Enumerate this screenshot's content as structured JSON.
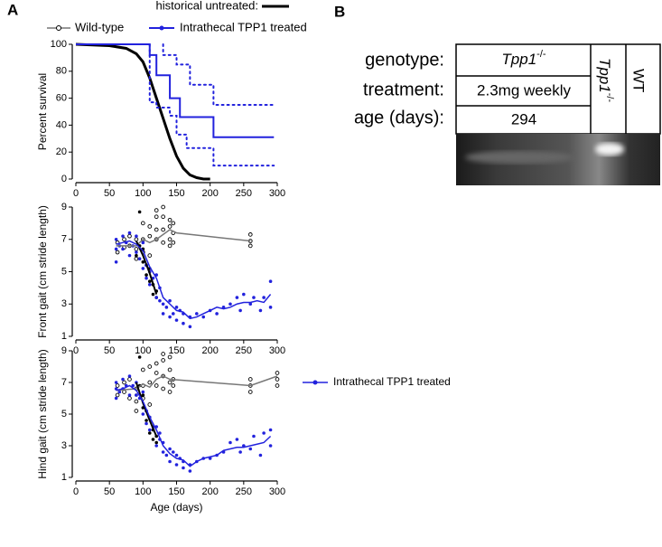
{
  "panel_labels": [
    "A",
    "B"
  ],
  "chart_data": [
    {
      "type": "line",
      "y_label": "Percent survival",
      "xlim": [
        0,
        300
      ],
      "xticks": [
        0,
        50,
        100,
        150,
        200,
        250,
        300
      ],
      "ylim": [
        0,
        100
      ],
      "yticks": [
        0,
        20,
        40,
        60,
        80,
        100
      ],
      "series": [
        {
          "name": "historical untreated:",
          "color": "#000000",
          "width": 3,
          "mode": "line",
          "x": [
            0,
            50,
            75,
            90,
            100,
            110,
            120,
            130,
            140,
            150,
            160,
            170,
            180,
            190,
            200
          ],
          "values": [
            100,
            99,
            97,
            93,
            87,
            75,
            60,
            45,
            30,
            17,
            8,
            3,
            1,
            0,
            0
          ]
        },
        {
          "name": "Intrathecal TPP1 treated",
          "color": "#2222dd",
          "width": 2,
          "mode": "line",
          "x": [
            0,
            110,
            110,
            120,
            120,
            140,
            140,
            155,
            155,
            165,
            165,
            205,
            205,
            295
          ],
          "values": [
            100,
            100,
            92,
            92,
            77,
            77,
            60,
            60,
            46,
            46,
            46,
            46,
            31,
            31
          ]
        },
        {
          "color": "#2222dd",
          "width": 2,
          "mode": "line",
          "dashed": true,
          "x": [
            130,
            130,
            150,
            150,
            170,
            170,
            205,
            205,
            295
          ],
          "values": [
            100,
            92,
            92,
            85,
            85,
            70,
            70,
            55,
            55
          ]
        },
        {
          "color": "#2222dd",
          "width": 2,
          "mode": "line",
          "dashed": true,
          "x": [
            110,
            110,
            120,
            120,
            140,
            140,
            150,
            150,
            165,
            165,
            205,
            205,
            295
          ],
          "values": [
            100,
            57,
            57,
            53,
            53,
            47,
            47,
            33,
            33,
            23,
            23,
            10,
            10
          ]
        }
      ]
    },
    {
      "type": "scatter",
      "y_label": "Front gait (cm stride length)",
      "xlim": [
        0,
        300
      ],
      "xticks": [
        0,
        50,
        100,
        150,
        200,
        250,
        300
      ],
      "ylim": [
        1,
        9
      ],
      "yticks": [
        1,
        3,
        5,
        7,
        9
      ],
      "series": [
        {
          "name": "Wild-type",
          "color": "#000000",
          "mode": "points",
          "marker": "open",
          "x": [
            62,
            62,
            72,
            72,
            80,
            80,
            90,
            90,
            90,
            100,
            100,
            100,
            110,
            110,
            110,
            120,
            120,
            120,
            120,
            130,
            130,
            130,
            130,
            140,
            140,
            140,
            140,
            145,
            145,
            145,
            260,
            260,
            260
          ],
          "values": [
            6.2,
            6.8,
            6.5,
            7.0,
            6.6,
            7.2,
            5.8,
            6.4,
            7.0,
            6.2,
            7.0,
            8.0,
            6.0,
            7.2,
            7.8,
            7.0,
            7.6,
            8.4,
            8.8,
            6.8,
            7.6,
            8.4,
            9.0,
            6.6,
            7.0,
            7.8,
            8.2,
            6.8,
            7.4,
            8.0,
            6.6,
            6.9,
            7.3
          ]
        },
        {
          "color": "#000000",
          "mode": "points",
          "marker": "filled",
          "x": [
            90,
            95,
            95,
            100,
            100,
            105,
            105,
            110,
            110,
            115,
            115,
            120,
            120
          ],
          "values": [
            6.0,
            6.6,
            8.7,
            5.6,
            6.4,
            4.8,
            5.4,
            4.4,
            5.2,
            3.6,
            4.2,
            3.4,
            3.8
          ]
        },
        {
          "color": "#2222dd",
          "mode": "points",
          "marker": "filled",
          "x": [
            60,
            60,
            60,
            65,
            70,
            70,
            75,
            80,
            80,
            85,
            90,
            90,
            95,
            100,
            100,
            105,
            105,
            110,
            110,
            115,
            120,
            120,
            125,
            125,
            130,
            130,
            135,
            140,
            140,
            145,
            150,
            150,
            155,
            160,
            160,
            170,
            170,
            180,
            190,
            200,
            210,
            220,
            230,
            240,
            245,
            250,
            260,
            265,
            275,
            280,
            290,
            290
          ],
          "values": [
            5.6,
            6.4,
            7.0,
            6.6,
            6.4,
            7.2,
            6.8,
            6.0,
            7.4,
            6.6,
            6.2,
            7.2,
            5.8,
            5.2,
            6.8,
            4.6,
            5.4,
            4.2,
            5.0,
            4.6,
            3.4,
            4.8,
            3.2,
            4.0,
            2.4,
            3.0,
            2.8,
            2.2,
            3.2,
            2.4,
            2.0,
            2.8,
            2.6,
            1.8,
            2.4,
            1.6,
            2.2,
            2.4,
            2.2,
            2.6,
            2.4,
            2.8,
            3.0,
            3.4,
            2.6,
            3.6,
            3.0,
            3.4,
            2.6,
            3.4,
            4.4,
            2.8
          ]
        },
        {
          "color": "#777777",
          "width": 1.5,
          "mode": "line",
          "x": [
            60,
            90,
            100,
            110,
            120,
            130,
            140,
            150,
            260
          ],
          "values": [
            6.6,
            6.6,
            7.0,
            6.8,
            7.0,
            7.3,
            7.6,
            7.4,
            6.9
          ]
        },
        {
          "color": "#000000",
          "width": 2,
          "mode": "line",
          "x": [
            90,
            100,
            110,
            120
          ],
          "values": [
            6.9,
            6.0,
            4.9,
            3.6
          ]
        },
        {
          "color": "#2222dd",
          "width": 1.5,
          "mode": "line",
          "x": [
            60,
            70,
            80,
            90,
            100,
            110,
            120,
            130,
            140,
            150,
            160,
            170,
            180,
            190,
            200,
            210,
            220,
            230,
            240,
            250,
            260,
            270,
            280,
            290
          ],
          "values": [
            6.7,
            6.8,
            6.9,
            6.7,
            6.3,
            5.3,
            4.6,
            3.4,
            3.0,
            2.6,
            2.5,
            2.1,
            2.2,
            2.4,
            2.6,
            2.8,
            2.7,
            2.8,
            3.0,
            3.1,
            3.1,
            3.2,
            3.1,
            3.6
          ]
        }
      ]
    },
    {
      "type": "scatter",
      "y_label": "Hind gait (cm stride length)",
      "x_label": "Age (days)",
      "xlim": [
        0,
        300
      ],
      "xticks": [
        0,
        50,
        100,
        150,
        200,
        250,
        300
      ],
      "ylim": [
        1,
        9
      ],
      "yticks": [
        1,
        3,
        5,
        7,
        9
      ],
      "series": [
        {
          "color": "#000000",
          "mode": "points",
          "marker": "open",
          "x": [
            62,
            62,
            72,
            72,
            80,
            80,
            90,
            90,
            90,
            100,
            100,
            100,
            110,
            110,
            110,
            120,
            120,
            120,
            130,
            130,
            130,
            130,
            140,
            140,
            140,
            140,
            145,
            145,
            260,
            260,
            260,
            300,
            300,
            300
          ],
          "values": [
            6.2,
            6.8,
            6.4,
            7.0,
            6.0,
            7.2,
            5.2,
            5.8,
            6.6,
            6.0,
            6.8,
            7.8,
            5.6,
            7.0,
            8.0,
            6.8,
            7.6,
            8.2,
            6.6,
            7.4,
            8.4,
            8.8,
            6.4,
            7.0,
            7.8,
            8.6,
            6.8,
            7.2,
            6.4,
            6.8,
            7.2,
            6.8,
            7.2,
            7.6
          ]
        },
        {
          "color": "#000000",
          "mode": "points",
          "marker": "filled",
          "x": [
            90,
            95,
            95,
            100,
            100,
            105,
            105,
            110,
            110,
            115,
            115,
            120,
            120
          ],
          "values": [
            6.2,
            6.8,
            8.6,
            5.4,
            6.2,
            4.6,
            5.2,
            3.8,
            4.8,
            3.4,
            4.0,
            3.2,
            3.6
          ]
        },
        {
          "name": "Intrathecal TPP1 treated",
          "color": "#2222dd",
          "mode": "points",
          "marker": "filled",
          "x": [
            60,
            60,
            60,
            65,
            70,
            70,
            75,
            80,
            80,
            85,
            90,
            90,
            95,
            100,
            100,
            105,
            105,
            110,
            110,
            115,
            120,
            120,
            125,
            125,
            130,
            130,
            135,
            140,
            140,
            145,
            150,
            150,
            155,
            160,
            160,
            170,
            170,
            180,
            190,
            200,
            210,
            220,
            230,
            240,
            245,
            250,
            260,
            265,
            275,
            280,
            290,
            290
          ],
          "values": [
            6.0,
            6.6,
            7.0,
            6.4,
            6.6,
            7.2,
            6.8,
            6.2,
            7.4,
            6.8,
            6.2,
            7.0,
            6.0,
            5.0,
            6.4,
            4.4,
            5.2,
            4.0,
            4.8,
            4.2,
            3.0,
            4.2,
            3.4,
            3.8,
            2.6,
            3.2,
            2.4,
            2.0,
            2.8,
            2.6,
            1.8,
            2.4,
            2.2,
            1.6,
            2.0,
            1.4,
            1.8,
            2.0,
            2.2,
            2.2,
            2.4,
            2.6,
            3.2,
            3.4,
            2.6,
            3.0,
            2.8,
            3.6,
            2.4,
            3.8,
            4.0,
            3.0
          ]
        },
        {
          "color": "#777777",
          "width": 1.5,
          "mode": "line",
          "x": [
            60,
            90,
            100,
            110,
            120,
            130,
            140,
            260,
            300
          ],
          "values": [
            6.5,
            6.6,
            6.9,
            6.7,
            7.2,
            7.4,
            7.2,
            6.8,
            7.4
          ]
        },
        {
          "color": "#000000",
          "width": 2,
          "mode": "line",
          "x": [
            90,
            100,
            110,
            120
          ],
          "values": [
            7.0,
            5.7,
            4.6,
            3.6
          ]
        },
        {
          "color": "#2222dd",
          "width": 1.5,
          "mode": "line",
          "x": [
            60,
            70,
            80,
            90,
            100,
            110,
            120,
            130,
            140,
            150,
            160,
            170,
            180,
            190,
            200,
            210,
            220,
            230,
            240,
            250,
            260,
            270,
            280,
            290
          ],
          "values": [
            6.5,
            6.6,
            6.8,
            6.5,
            5.8,
            4.8,
            4.0,
            3.0,
            2.5,
            2.2,
            2.1,
            1.7,
            2.0,
            2.2,
            2.3,
            2.4,
            2.7,
            2.8,
            2.9,
            2.9,
            3.0,
            3.1,
            3.2,
            3.6
          ]
        }
      ]
    }
  ],
  "gel": {
    "row_labels": [
      "genotype:",
      "treatment:",
      "age (days):"
    ],
    "genotype_value": {
      "base": "Tpp1",
      "sup": "-/-"
    },
    "treatment_value": "2.3mg weekly",
    "age_value": "294",
    "column_headers": [
      {
        "base": "Tpp1",
        "sup": "-/-"
      },
      {
        "base": "WT"
      }
    ]
  }
}
